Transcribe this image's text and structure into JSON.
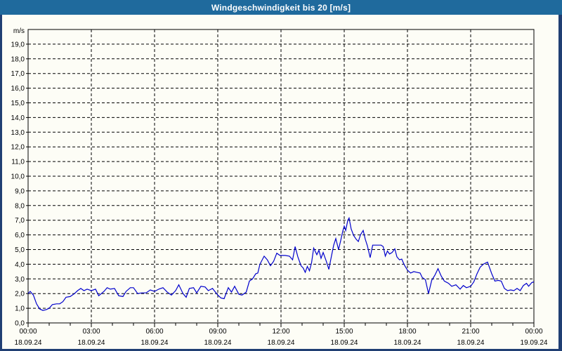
{
  "title_bar": {
    "title": "Windgeschwindigkeit bis 20 [m/s]"
  },
  "colors": {
    "titlebar_bg": "#1f6a9d",
    "titlebar_text": "#ffffff",
    "window_border": "#203f73",
    "page_bg": "#fdfdf6",
    "frame": "#000000",
    "grid": "#000000",
    "text": "#000000",
    "line": "#0000cc"
  },
  "chart_data": {
    "type": "line",
    "title": "Windgeschwindigkeit bis 20 [m/s]",
    "xlabel": "",
    "ylabel": "m/s",
    "ylim": [
      0,
      20
    ],
    "xlim_hours": [
      0,
      24
    ],
    "grid": "dashed, 1 m/s horizontal steps, 3 h vertical steps, minor x ticks every hour",
    "legend": "none",
    "y_tick_labels": [
      "0,0",
      "1,0",
      "2,0",
      "3,0",
      "4,0",
      "5,0",
      "6,0",
      "7,0",
      "8,0",
      "9,0",
      "10,0",
      "11,0",
      "12,0",
      "13,0",
      "14,0",
      "15,0",
      "16,0",
      "17,0",
      "18,0",
      "19,0"
    ],
    "x_ticks": [
      {
        "hour": 0,
        "time": "00:00",
        "date": "18.09.24"
      },
      {
        "hour": 3,
        "time": "03:00",
        "date": "18.09.24"
      },
      {
        "hour": 6,
        "time": "06:00",
        "date": "18.09.24"
      },
      {
        "hour": 9,
        "time": "09:00",
        "date": "18.09.24"
      },
      {
        "hour": 12,
        "time": "12:00",
        "date": "18.09.24"
      },
      {
        "hour": 15,
        "time": "15:00",
        "date": "18.09.24"
      },
      {
        "hour": 18,
        "time": "18:00",
        "date": "18.09.24"
      },
      {
        "hour": 21,
        "time": "21:00",
        "date": "18.09.24"
      },
      {
        "hour": 24,
        "time": "00:00",
        "date": "19.09.24"
      }
    ],
    "series": [
      {
        "name": "Windgeschwindigkeit",
        "unit": "m/s",
        "color": "#0000cc",
        "points": [
          [
            0.0,
            2.0
          ],
          [
            0.1,
            2.15
          ],
          [
            0.25,
            1.9
          ],
          [
            0.4,
            1.3
          ],
          [
            0.55,
            0.95
          ],
          [
            0.7,
            0.85
          ],
          [
            0.85,
            0.9
          ],
          [
            1.0,
            1.0
          ],
          [
            1.15,
            1.25
          ],
          [
            1.35,
            1.3
          ],
          [
            1.5,
            1.3
          ],
          [
            1.65,
            1.45
          ],
          [
            1.8,
            1.75
          ],
          [
            2.0,
            1.8
          ],
          [
            2.2,
            2.0
          ],
          [
            2.35,
            2.2
          ],
          [
            2.5,
            2.35
          ],
          [
            2.65,
            2.2
          ],
          [
            2.8,
            2.3
          ],
          [
            3.0,
            2.2
          ],
          [
            3.2,
            2.3
          ],
          [
            3.35,
            1.85
          ],
          [
            3.6,
            2.15
          ],
          [
            3.75,
            2.4
          ],
          [
            3.9,
            2.3
          ],
          [
            4.1,
            2.35
          ],
          [
            4.3,
            1.85
          ],
          [
            4.5,
            1.8
          ],
          [
            4.65,
            2.15
          ],
          [
            4.85,
            2.4
          ],
          [
            5.0,
            2.4
          ],
          [
            5.2,
            2.0
          ],
          [
            5.4,
            2.05
          ],
          [
            5.6,
            2.05
          ],
          [
            5.8,
            2.25
          ],
          [
            6.0,
            2.15
          ],
          [
            6.2,
            2.3
          ],
          [
            6.4,
            2.4
          ],
          [
            6.6,
            2.1
          ],
          [
            6.8,
            1.9
          ],
          [
            7.0,
            2.2
          ],
          [
            7.15,
            2.6
          ],
          [
            7.35,
            2.0
          ],
          [
            7.5,
            1.75
          ],
          [
            7.65,
            2.35
          ],
          [
            7.85,
            2.4
          ],
          [
            8.0,
            2.05
          ],
          [
            8.2,
            2.5
          ],
          [
            8.4,
            2.45
          ],
          [
            8.55,
            2.2
          ],
          [
            8.75,
            2.35
          ],
          [
            9.0,
            1.9
          ],
          [
            9.15,
            1.7
          ],
          [
            9.3,
            1.65
          ],
          [
            9.5,
            2.4
          ],
          [
            9.65,
            2.1
          ],
          [
            9.8,
            2.5
          ],
          [
            10.0,
            1.95
          ],
          [
            10.15,
            1.9
          ],
          [
            10.35,
            2.1
          ],
          [
            10.5,
            2.85
          ],
          [
            10.65,
            3.0
          ],
          [
            10.8,
            3.35
          ],
          [
            10.9,
            3.4
          ],
          [
            11.0,
            4.0
          ],
          [
            11.2,
            4.55
          ],
          [
            11.35,
            4.3
          ],
          [
            11.5,
            3.9
          ],
          [
            11.65,
            4.2
          ],
          [
            11.8,
            4.75
          ],
          [
            11.95,
            4.6
          ],
          [
            12.2,
            4.6
          ],
          [
            12.4,
            4.55
          ],
          [
            12.55,
            4.3
          ],
          [
            12.67,
            5.2
          ],
          [
            12.8,
            4.5
          ],
          [
            12.95,
            3.9
          ],
          [
            13.05,
            3.75
          ],
          [
            13.15,
            3.45
          ],
          [
            13.25,
            3.85
          ],
          [
            13.35,
            3.55
          ],
          [
            13.45,
            4.1
          ],
          [
            13.55,
            5.1
          ],
          [
            13.7,
            4.65
          ],
          [
            13.8,
            4.95
          ],
          [
            13.9,
            4.4
          ],
          [
            14.0,
            4.8
          ],
          [
            14.15,
            4.2
          ],
          [
            14.27,
            3.65
          ],
          [
            14.4,
            4.6
          ],
          [
            14.5,
            5.3
          ],
          [
            14.6,
            5.75
          ],
          [
            14.73,
            5.0
          ],
          [
            14.83,
            5.6
          ],
          [
            14.93,
            6.25
          ],
          [
            15.0,
            6.6
          ],
          [
            15.07,
            6.3
          ],
          [
            15.17,
            7.0
          ],
          [
            15.23,
            7.15
          ],
          [
            15.33,
            6.4
          ],
          [
            15.45,
            5.95
          ],
          [
            15.57,
            5.7
          ],
          [
            15.67,
            5.55
          ],
          [
            15.77,
            6.0
          ],
          [
            15.9,
            6.3
          ],
          [
            16.0,
            5.7
          ],
          [
            16.1,
            5.25
          ],
          [
            16.23,
            4.45
          ],
          [
            16.35,
            5.3
          ],
          [
            16.75,
            5.3
          ],
          [
            16.85,
            5.2
          ],
          [
            16.95,
            4.55
          ],
          [
            17.05,
            4.9
          ],
          [
            17.15,
            4.7
          ],
          [
            17.27,
            4.8
          ],
          [
            17.4,
            5.05
          ],
          [
            17.5,
            4.5
          ],
          [
            17.62,
            4.3
          ],
          [
            17.73,
            4.35
          ],
          [
            17.85,
            3.95
          ],
          [
            18.0,
            3.6
          ],
          [
            18.15,
            3.4
          ],
          [
            18.3,
            3.5
          ],
          [
            18.45,
            3.45
          ],
          [
            18.6,
            3.4
          ],
          [
            18.7,
            3.1
          ],
          [
            18.85,
            2.95
          ],
          [
            19.0,
            2.0
          ],
          [
            19.15,
            2.9
          ],
          [
            19.3,
            3.25
          ],
          [
            19.45,
            3.7
          ],
          [
            19.6,
            3.2
          ],
          [
            19.75,
            2.85
          ],
          [
            19.95,
            2.7
          ],
          [
            20.1,
            2.5
          ],
          [
            20.3,
            2.6
          ],
          [
            20.5,
            2.3
          ],
          [
            20.65,
            2.55
          ],
          [
            20.8,
            2.4
          ],
          [
            21.0,
            2.5
          ],
          [
            21.15,
            2.8
          ],
          [
            21.3,
            3.35
          ],
          [
            21.45,
            3.8
          ],
          [
            21.6,
            4.0
          ],
          [
            21.8,
            4.15
          ],
          [
            22.0,
            3.35
          ],
          [
            22.15,
            2.85
          ],
          [
            22.3,
            2.9
          ],
          [
            22.45,
            2.85
          ],
          [
            22.6,
            2.35
          ],
          [
            22.75,
            2.2
          ],
          [
            22.9,
            2.25
          ],
          [
            23.05,
            2.2
          ],
          [
            23.2,
            2.35
          ],
          [
            23.35,
            2.2
          ],
          [
            23.5,
            2.55
          ],
          [
            23.65,
            2.7
          ],
          [
            23.75,
            2.5
          ],
          [
            23.9,
            2.75
          ],
          [
            24.0,
            2.8
          ]
        ]
      }
    ]
  }
}
